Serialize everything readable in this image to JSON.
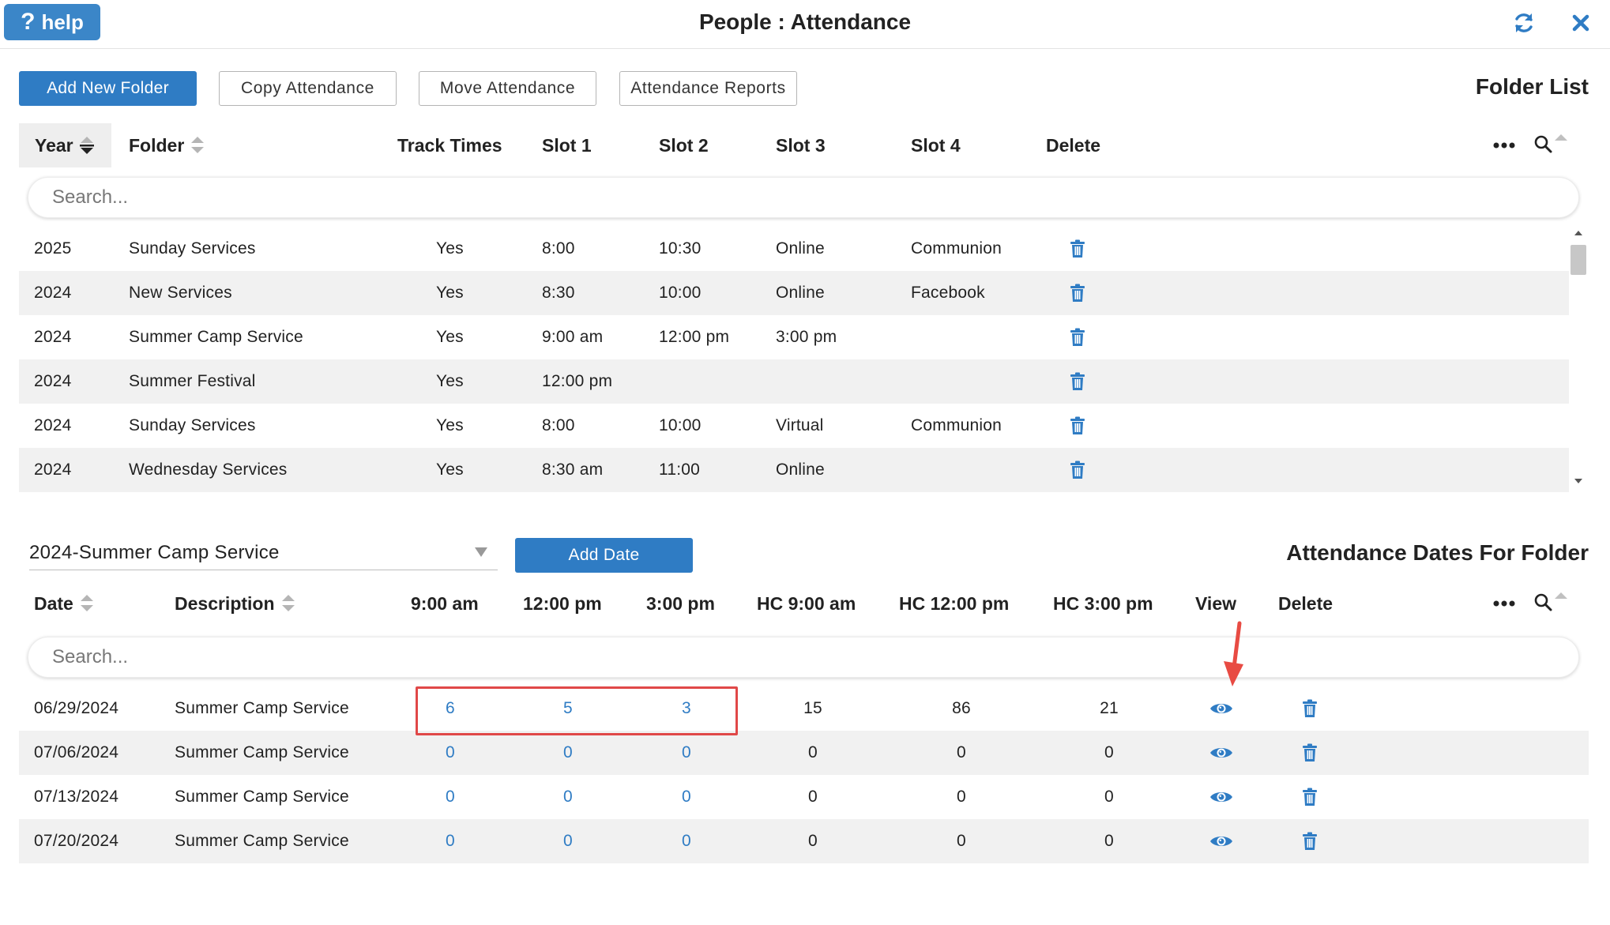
{
  "header": {
    "help_label": "help",
    "title": "People : Attendance",
    "refresh_icon": "refresh-icon",
    "close_icon": "close-icon"
  },
  "toolbar": {
    "add_folder": "Add New Folder",
    "copy": "Copy Attendance",
    "move": "Move Attendance",
    "reports": "Attendance Reports"
  },
  "folder_list": {
    "title": "Folder List",
    "columns": {
      "year": "Year",
      "folder": "Folder",
      "track_times": "Track Times",
      "slot1": "Slot 1",
      "slot2": "Slot 2",
      "slot3": "Slot 3",
      "slot4": "Slot 4",
      "delete": "Delete"
    },
    "search_placeholder": "Search...",
    "rows": [
      {
        "year": "2025",
        "folder": "Sunday Services",
        "track": "Yes",
        "slot1": "8:00",
        "slot2": "10:30",
        "slot3": "Online",
        "slot4": "Communion"
      },
      {
        "year": "2024",
        "folder": "New Services",
        "track": "Yes",
        "slot1": "8:30",
        "slot2": "10:00",
        "slot3": "Online",
        "slot4": "Facebook"
      },
      {
        "year": "2024",
        "folder": "Summer Camp Service",
        "track": "Yes",
        "slot1": "9:00 am",
        "slot2": "12:00 pm",
        "slot3": "3:00 pm",
        "slot4": ""
      },
      {
        "year": "2024",
        "folder": "Summer Festival",
        "track": "Yes",
        "slot1": "12:00 pm",
        "slot2": "",
        "slot3": "",
        "slot4": ""
      },
      {
        "year": "2024",
        "folder": "Sunday Services",
        "track": "Yes",
        "slot1": "8:00",
        "slot2": "10:00",
        "slot3": "Virtual",
        "slot4": "Communion"
      },
      {
        "year": "2024",
        "folder": "Wednesday Services",
        "track": "Yes",
        "slot1": "8:30 am",
        "slot2": "11:00",
        "slot3": "Online",
        "slot4": ""
      }
    ]
  },
  "dates": {
    "selected_folder": "2024-Summer Camp Service",
    "add_date": "Add Date",
    "title": "Attendance Dates For Folder",
    "columns": {
      "date": "Date",
      "description": "Description",
      "c1": "9:00 am",
      "c2": "12:00 pm",
      "c3": "3:00 pm",
      "hc1": "HC 9:00 am",
      "hc2": "HC 12:00 pm",
      "hc3": "HC 3:00 pm",
      "view": "View",
      "delete": "Delete"
    },
    "search_placeholder": "Search...",
    "rows": [
      {
        "date": "06/29/2024",
        "desc": "Summer Camp Service",
        "c1": "6",
        "c2": "5",
        "c3": "3",
        "hc1": "15",
        "hc2": "86",
        "hc3": "21"
      },
      {
        "date": "07/06/2024",
        "desc": "Summer Camp Service",
        "c1": "0",
        "c2": "0",
        "c3": "0",
        "hc1": "0",
        "hc2": "0",
        "hc3": "0"
      },
      {
        "date": "07/13/2024",
        "desc": "Summer Camp Service",
        "c1": "0",
        "c2": "0",
        "c3": "0",
        "hc1": "0",
        "hc2": "0",
        "hc3": "0"
      },
      {
        "date": "07/20/2024",
        "desc": "Summer Camp Service",
        "c1": "0",
        "c2": "0",
        "c3": "0",
        "hc1": "0",
        "hc2": "0",
        "hc3": "0"
      }
    ]
  },
  "colors": {
    "accent": "#2f7cc4",
    "highlight": "#e04848",
    "alt_row": "#f1f1f1"
  }
}
